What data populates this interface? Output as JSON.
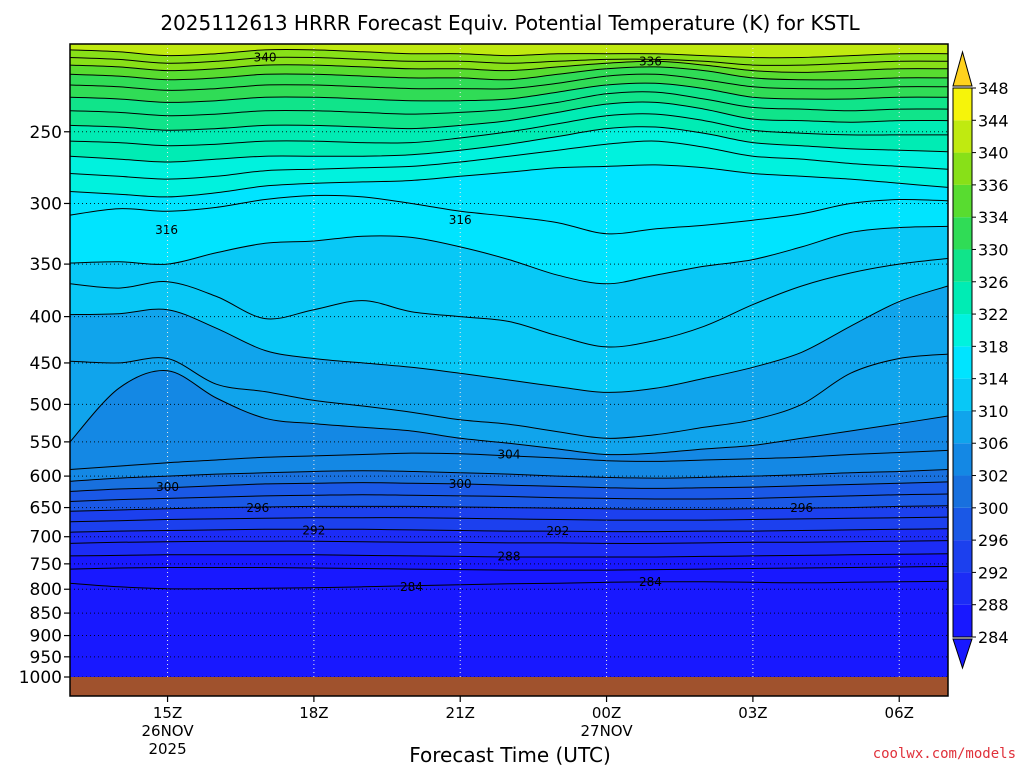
{
  "chart_data": {
    "type": "heatmap",
    "title": "2025112613 HRRR Forecast Equiv. Potential Temperature (K) for KSTL",
    "xlabel": "Forecast Time (UTC)",
    "ylabel": "",
    "watermark": "coolwx.com/models",
    "y_axis": {
      "scale": "log-pressure",
      "range": [
        200,
        1000
      ],
      "ticks": [
        "250",
        "300",
        "350",
        "400",
        "450",
        "500",
        "550",
        "600",
        "650",
        "700",
        "750",
        "800",
        "850",
        "900",
        "950",
        "1000"
      ],
      "reversed": true
    },
    "x_axis": {
      "range": [
        13,
        31
      ],
      "ticks": [
        {
          "x": 15,
          "label": "15Z",
          "sub": "26NOV",
          "sub2": "2025"
        },
        {
          "x": 18,
          "label": "18Z",
          "sub": "",
          "sub2": ""
        },
        {
          "x": 21,
          "label": "21Z",
          "sub": "",
          "sub2": ""
        },
        {
          "x": 24,
          "label": "00Z",
          "sub": "27NOV",
          "sub2": ""
        },
        {
          "x": 27,
          "label": "03Z",
          "sub": "",
          "sub2": ""
        },
        {
          "x": 30,
          "label": "06Z",
          "sub": "",
          "sub2": ""
        }
      ]
    },
    "grid": true,
    "colorbar": {
      "units": "K",
      "levels": [
        "284",
        "288",
        "292",
        "296",
        "300",
        "302",
        "306",
        "310",
        "314",
        "318",
        "322",
        "326",
        "330",
        "334",
        "336",
        "340",
        "344",
        "348"
      ],
      "colors": [
        "#1818ff",
        "#1c2cf6",
        "#1c40ee",
        "#1a58e6",
        "#1870de",
        "#1488e4",
        "#10a4ec",
        "#08c8f6",
        "#00e4ff",
        "#00f2de",
        "#00ecb4",
        "#10e48a",
        "#30dc56",
        "#58dc30",
        "#88e018",
        "#c0ea10",
        "#f6f40a",
        "#ffd21e"
      ]
    },
    "levels": [
      {
        "value": 340,
        "label": "340",
        "p": [
          203,
          204,
          206,
          205,
          203,
          203,
          204,
          205,
          205,
          206,
          205,
          205,
          205,
          206,
          207,
          207,
          206,
          205,
          205
        ]
      },
      {
        "value": 338,
        "label": "",
        "p": [
          207,
          208,
          210,
          209,
          207,
          207,
          208,
          209,
          209,
          210,
          209,
          208,
          208,
          209,
          211,
          211,
          210,
          209,
          209
        ]
      },
      {
        "value": 336,
        "label": "336",
        "p": [
          211,
          212,
          214,
          213,
          211,
          211,
          212,
          213,
          213,
          214,
          212,
          210,
          209,
          211,
          214,
          215,
          214,
          213,
          213
        ]
      },
      {
        "value": 334,
        "label": "",
        "p": [
          216,
          217,
          219,
          218,
          216,
          216,
          217,
          218,
          218,
          219,
          216,
          213,
          212,
          214,
          218,
          219,
          219,
          218,
          218
        ]
      },
      {
        "value": 332,
        "label": "",
        "p": [
          222,
          223,
          225,
          224,
          222,
          222,
          223,
          224,
          224,
          224,
          221,
          217,
          216,
          219,
          223,
          224,
          224,
          223,
          223
        ]
      },
      {
        "value": 330,
        "label": "",
        "p": [
          229,
          230,
          232,
          231,
          229,
          229,
          230,
          231,
          231,
          230,
          226,
          222,
          221,
          224,
          229,
          230,
          230,
          229,
          229
        ]
      },
      {
        "value": 328,
        "label": "",
        "p": [
          237,
          238,
          240,
          239,
          237,
          237,
          238,
          239,
          238,
          236,
          232,
          227,
          226,
          230,
          235,
          236,
          237,
          236,
          236
        ]
      },
      {
        "value": 326,
        "label": "",
        "p": [
          246,
          247,
          249,
          248,
          246,
          246,
          247,
          248,
          246,
          243,
          238,
          233,
          232,
          236,
          242,
          243,
          244,
          243,
          243
        ]
      },
      {
        "value": 324,
        "label": "",
        "p": [
          256,
          257,
          259,
          258,
          256,
          256,
          257,
          257,
          254,
          250,
          245,
          240,
          239,
          243,
          249,
          251,
          252,
          252,
          252
        ]
      },
      {
        "value": 322,
        "label": "",
        "p": [
          266,
          268,
          270,
          268,
          266,
          266,
          266,
          265,
          262,
          258,
          253,
          248,
          247,
          251,
          257,
          259,
          261,
          262,
          263
        ]
      },
      {
        "value": 320,
        "label": "",
        "p": [
          278,
          280,
          282,
          280,
          276,
          275,
          274,
          273,
          270,
          266,
          262,
          258,
          256,
          260,
          266,
          268,
          271,
          273,
          275
        ]
      },
      {
        "value": 318,
        "label": "",
        "p": [
          291,
          293,
          295,
          292,
          287,
          285,
          284,
          283,
          280,
          277,
          274,
          273,
          272,
          274,
          278,
          280,
          282,
          285,
          288
        ]
      },
      {
        "value": 316,
        "label": "316",
        "p": [
          309,
          304,
          306,
          303,
          297,
          294,
          295,
          300,
          306,
          310,
          315,
          324,
          320,
          317,
          313,
          308,
          300,
          297,
          298
        ]
      },
      {
        "value": 314,
        "label": "",
        "p": [
          349,
          348,
          350,
          340,
          332,
          330,
          326,
          327,
          335,
          346,
          360,
          368,
          360,
          352,
          346,
          335,
          323,
          319,
          318
        ]
      },
      {
        "value": 312,
        "label": "",
        "p": [
          368,
          372,
          366,
          380,
          402,
          393,
          384,
          395,
          400,
          405,
          420,
          432,
          425,
          410,
          388,
          370,
          358,
          350,
          345
        ]
      },
      {
        "value": 310,
        "label": "",
        "p": [
          398,
          397,
          393,
          412,
          436,
          445,
          450,
          455,
          462,
          470,
          478,
          485,
          480,
          468,
          455,
          438,
          410,
          385,
          370
        ]
      },
      {
        "value": 308,
        "label": "",
        "p": [
          448,
          450,
          445,
          475,
          484,
          495,
          502,
          510,
          520,
          526,
          536,
          545,
          540,
          530,
          520,
          500,
          462,
          445,
          440
        ]
      },
      {
        "value": 306,
        "label": "",
        "p": [
          550,
          480,
          459,
          492,
          518,
          525,
          530,
          535,
          545,
          552,
          560,
          568,
          566,
          560,
          555,
          545,
          535,
          525,
          515
        ]
      },
      {
        "value": 304,
        "label": "304",
        "p": [
          590,
          585,
          580,
          576,
          572,
          570,
          568,
          566,
          567,
          570,
          573,
          577,
          578,
          576,
          574,
          572,
          568,
          565,
          562
        ]
      },
      {
        "value": 302,
        "label": "",
        "p": [
          608,
          603,
          600,
          597,
          595,
          593,
          592,
          593,
          595,
          597,
          600,
          602,
          603,
          602,
          600,
          598,
          595,
          593,
          590
        ]
      },
      {
        "value": 300,
        "label": "300",
        "p": [
          624,
          620,
          618,
          615,
          612,
          611,
          610,
          611,
          612,
          614,
          616,
          618,
          619,
          618,
          617,
          615,
          613,
          611,
          609
        ]
      },
      {
        "value": 298,
        "label": "",
        "p": [
          640,
          637,
          635,
          633,
          631,
          630,
          629,
          630,
          631,
          632,
          634,
          635,
          636,
          636,
          635,
          633,
          631,
          629,
          628
        ]
      },
      {
        "value": 296,
        "label": "296",
        "p": [
          656,
          654,
          652,
          650,
          649,
          648,
          648,
          648,
          649,
          650,
          651,
          652,
          653,
          653,
          652,
          651,
          650,
          648,
          647
        ]
      },
      {
        "value": 294,
        "label": "",
        "p": [
          674,
          672,
          670,
          669,
          668,
          667,
          667,
          667,
          668,
          669,
          670,
          671,
          671,
          671,
          670,
          669,
          668,
          667,
          666
        ]
      },
      {
        "value": 292,
        "label": "292",
        "p": [
          692,
          690,
          689,
          688,
          687,
          687,
          687,
          688,
          689,
          690,
          690,
          691,
          691,
          690,
          690,
          689,
          688,
          687,
          686
        ]
      },
      {
        "value": 290,
        "label": "",
        "p": [
          712,
          710,
          709,
          708,
          708,
          708,
          709,
          710,
          710,
          711,
          711,
          712,
          712,
          711,
          710,
          710,
          709,
          708,
          707
        ]
      },
      {
        "value": 288,
        "label": "288",
        "p": [
          735,
          734,
          733,
          733,
          733,
          733,
          734,
          735,
          736,
          737,
          737,
          737,
          737,
          736,
          735,
          734,
          733,
          732,
          731
        ]
      },
      {
        "value": 286,
        "label": "",
        "p": [
          760,
          758,
          757,
          757,
          757,
          758,
          759,
          760,
          761,
          762,
          762,
          762,
          761,
          760,
          759,
          758,
          757,
          756,
          755
        ]
      },
      {
        "value": 284,
        "label": "284",
        "p": [
          788,
          795,
          799,
          799,
          798,
          797,
          795,
          793,
          791,
          789,
          788,
          786,
          785,
          785,
          786,
          787,
          786,
          785,
          784
        ]
      }
    ],
    "contour_labels": [
      {
        "text": "340",
        "x": 17.0,
        "p": 207
      },
      {
        "text": "336",
        "x": 24.9,
        "p": 209
      },
      {
        "text": "316",
        "x": 21.0,
        "p": 313
      },
      {
        "text": "316",
        "x": 14.98,
        "p": 321
      },
      {
        "text": "304",
        "x": 22.0,
        "p": 568
      },
      {
        "text": "300",
        "x": 15.0,
        "p": 617
      },
      {
        "text": "300",
        "x": 21.0,
        "p": 612
      },
      {
        "text": "296",
        "x": 16.85,
        "p": 651
      },
      {
        "text": "296",
        "x": 28.0,
        "p": 651
      },
      {
        "text": "292",
        "x": 18.0,
        "p": 689
      },
      {
        "text": "292",
        "x": 23.0,
        "p": 690
      },
      {
        "text": "288",
        "x": 22.0,
        "p": 736
      },
      {
        "text": "284",
        "x": 20.0,
        "p": 795
      },
      {
        "text": "284",
        "x": 24.9,
        "p": 785
      }
    ]
  }
}
